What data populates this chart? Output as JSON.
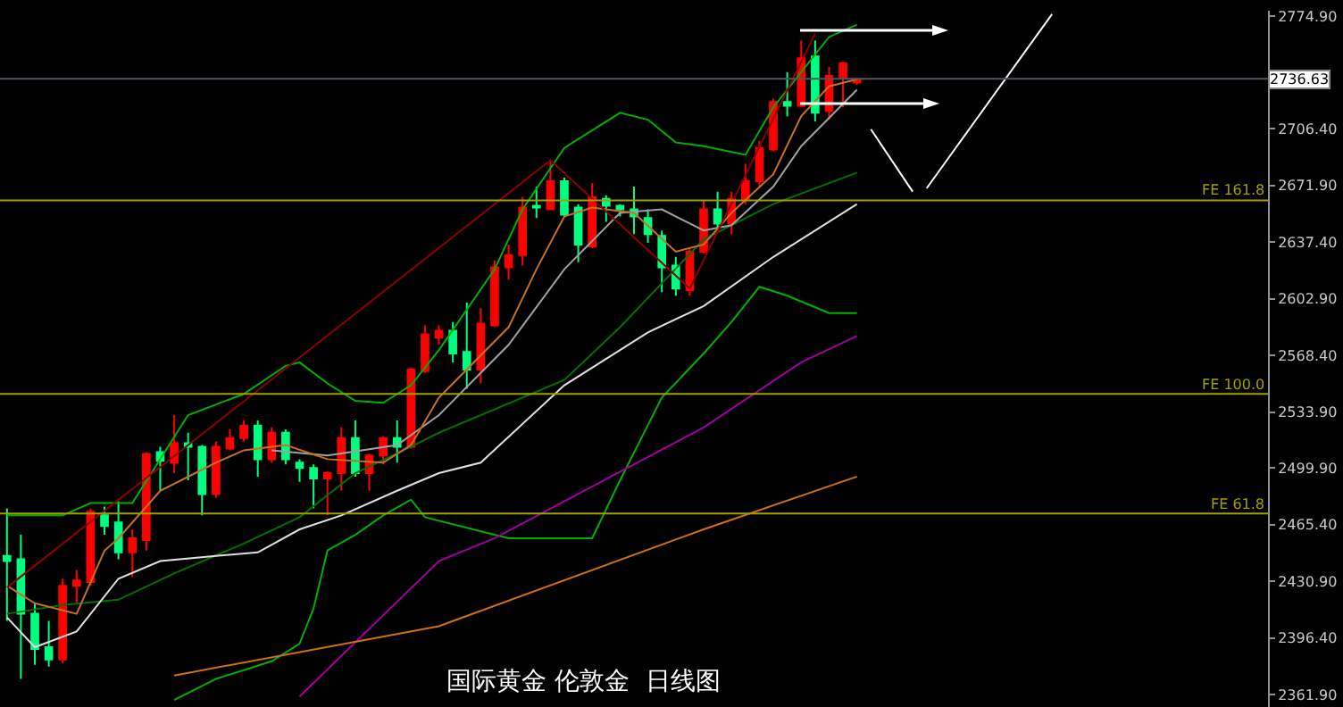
{
  "chart_data": {
    "type": "candlestick",
    "title": "国际黄金 伦敦金  日线图",
    "tick_labels": "y",
    "grid": false,
    "categories": [
      null,
      null,
      null,
      null,
      null,
      null,
      null,
      null,
      null,
      null,
      null,
      null,
      null,
      null,
      null,
      null,
      null,
      null,
      null,
      null,
      null,
      null,
      null,
      null,
      null,
      null,
      null,
      null,
      null,
      null,
      null,
      null,
      null,
      null,
      null,
      null,
      null,
      null,
      null,
      null,
      null,
      null,
      null,
      null,
      null,
      null,
      null,
      null,
      null,
      null,
      null,
      null,
      null,
      null,
      null,
      null,
      null,
      null,
      null,
      null,
      null,
      null,
      null,
      null,
      null,
      null,
      null,
      null,
      null,
      null,
      null,
      null,
      null,
      null,
      null,
      null,
      null,
      null,
      null,
      null,
      null,
      null,
      null,
      null,
      null,
      null,
      null,
      null,
      null,
      null,
      null
    ],
    "ohlc": [
      [
        2446.4,
        2475.3,
        2406.8,
        2443.2
      ],
      [
        2444.3,
        2459.2,
        2371.5,
        2411.1
      ],
      [
        2411.1,
        2417.5,
        2380.1,
        2389.7
      ],
      [
        2390.8,
        2406.8,
        2379.0,
        2383.3
      ],
      [
        2383.3,
        2432.5,
        2381.1,
        2428.2
      ],
      [
        2428.2,
        2437.8,
        2417.5,
        2431.4
      ],
      [
        2430.4,
        2475.3,
        2428.2,
        2473.2
      ],
      [
        2471.0,
        2476.4,
        2459.2,
        2464.6
      ],
      [
        2466.7,
        2479.6,
        2444.3,
        2448.5
      ],
      [
        2448.5,
        2462.5,
        2433.5,
        2457.1
      ],
      [
        2456.0,
        2509.5,
        2449.6,
        2508.4
      ],
      [
        2509.5,
        2512.8,
        2486.0,
        2504.2
      ],
      [
        2503.1,
        2532.0,
        2496.7,
        2514.9
      ],
      [
        2514.9,
        2521.3,
        2492.4,
        2512.8
      ],
      [
        2512.8,
        2513.8,
        2471.0,
        2483.9
      ],
      [
        2483.9,
        2516.0,
        2481.7,
        2512.8
      ],
      [
        2511.7,
        2523.4,
        2510.6,
        2518.1
      ],
      [
        2518.1,
        2528.8,
        2516.0,
        2525.6
      ],
      [
        2525.6,
        2528.8,
        2494.6,
        2505.2
      ],
      [
        2505.2,
        2524.5,
        2503.1,
        2521.3
      ],
      [
        2521.3,
        2523.4,
        2502.0,
        2505.2
      ],
      [
        2503.1,
        2505.2,
        2491.4,
        2499.9
      ],
      [
        2499.9,
        2502.0,
        2475.3,
        2493.5
      ],
      [
        2493.5,
        2497.8,
        2471.0,
        2496.7
      ],
      [
        2496.7,
        2524.5,
        2486.0,
        2518.1
      ],
      [
        2518.1,
        2528.8,
        2494.6,
        2496.7
      ],
      [
        2496.7,
        2508.4,
        2486.0,
        2507.4
      ],
      [
        2507.4,
        2519.2,
        2502.0,
        2518.1
      ],
      [
        2518.1,
        2528.8,
        2503.1,
        2512.8
      ],
      [
        2512.8,
        2560.9,
        2511.7,
        2559.8
      ],
      [
        2558.8,
        2586.6,
        2557.7,
        2581.2
      ],
      [
        2579.1,
        2586.6,
        2574.8,
        2583.4
      ],
      [
        2583.4,
        2588.7,
        2564.1,
        2569.5
      ],
      [
        2570.5,
        2600.5,
        2548.1,
        2559.8
      ],
      [
        2559.8,
        2597.3,
        2551.3,
        2587.7
      ],
      [
        2586.6,
        2626.2,
        2585.5,
        2621.9
      ],
      [
        2621.9,
        2635.8,
        2614.4,
        2629.4
      ],
      [
        2629.4,
        2664.7,
        2623.0,
        2658.3
      ],
      [
        2659.4,
        2671.1,
        2651.9,
        2658.3
      ],
      [
        2657.2,
        2686.1,
        2657.2,
        2674.3
      ],
      [
        2674.3,
        2676.5,
        2652.9,
        2654.0
      ],
      [
        2658.3,
        2660.4,
        2625.1,
        2635.8
      ],
      [
        2634.7,
        2673.3,
        2633.6,
        2664.7
      ],
      [
        2663.6,
        2665.8,
        2649.7,
        2659.4
      ],
      [
        2659.4,
        2660.4,
        2652.9,
        2657.2
      ],
      [
        2657.2,
        2671.1,
        2642.2,
        2652.9
      ],
      [
        2651.9,
        2657.2,
        2636.9,
        2642.2
      ],
      [
        2641.1,
        2644.4,
        2606.9,
        2621.9
      ],
      [
        2623.0,
        2628.3,
        2604.7,
        2609.0
      ],
      [
        2608.0,
        2633.6,
        2604.7,
        2631.5
      ],
      [
        2631.5,
        2662.5,
        2630.5,
        2657.2
      ],
      [
        2657.2,
        2667.9,
        2644.4,
        2648.6
      ],
      [
        2648.6,
        2667.9,
        2642.2,
        2663.6
      ],
      [
        2663.6,
        2685.0,
        2660.4,
        2674.3
      ],
      [
        2674.3,
        2698.9,
        2671.1,
        2694.6
      ],
      [
        2693.6,
        2724.6,
        2692.5,
        2722.5
      ],
      [
        2722.5,
        2740.7,
        2713.9,
        2720.3
      ],
      [
        2720.3,
        2759.9,
        2719.3,
        2749.2
      ],
      [
        2750.3,
        2759.9,
        2710.7,
        2716.0
      ],
      [
        2717.1,
        2743.9,
        2711.8,
        2738.5
      ],
      [
        2737.5,
        2747.1,
        2719.3,
        2746.0
      ],
      [
        2734.4,
        2737.5,
        2733.0,
        2736.6
      ],
      null,
      null,
      null,
      null,
      null,
      null,
      null,
      null,
      null,
      null,
      null,
      null,
      null,
      null,
      null,
      null,
      null,
      null,
      null,
      null,
      null,
      null,
      null,
      null,
      null,
      null,
      null,
      null,
      null
    ],
    "colors": [
      "#00ff80",
      "#00ff80",
      "#00ff80",
      "#00ff80",
      "#ff0000",
      "#ff0000",
      "#ff0000",
      "#00ff80",
      "#00ff80",
      "#ff0000",
      "#ff0000",
      "#00ff80",
      "#ff0000",
      "#00ff80",
      "#00ff80",
      "#ff0000",
      "#ff0000",
      "#ff0000",
      "#00ff80",
      "#ff0000",
      "#00ff80",
      "#00ff80",
      "#00ff80",
      "#ff0000",
      "#ff0000",
      "#00ff80",
      "#ff0000",
      "#ff0000",
      "#00ff80",
      "#ff0000",
      "#ff0000",
      "#ff0000",
      "#00ff80",
      "#00ff80",
      "#ff0000",
      "#ff0000",
      "#ff0000",
      "#ff0000",
      "#00ff80",
      "#ff0000",
      "#00ff80",
      "#00ff80",
      "#ff0000",
      "#00ff80",
      "#00ff80",
      "#00ff80",
      "#00ff80",
      "#00ff80",
      "#00ff80",
      "#ff0000",
      "#ff0000",
      "#00ff80",
      "#ff0000",
      "#ff0000",
      "#ff0000",
      "#ff0000",
      "#00ff80",
      "#ff0000",
      "#00ff80",
      "#ff0000",
      "#ff0000",
      "#ff0000",
      null,
      null,
      null,
      null,
      null,
      null,
      null,
      null,
      null,
      null,
      null,
      null,
      null,
      null,
      null,
      null,
      null,
      null,
      null,
      null,
      null,
      null,
      null,
      null,
      null,
      null,
      null,
      null,
      null
    ],
    "series": [
      {
        "type": "line",
        "color": "#00b000",
        "values": [
          2471.0,
          null,
          null,
          null,
          2471.0,
          null,
          2478.5,
          null,
          null,
          2478.5,
          null,
          null,
          null,
          2532.0,
          null,
          null,
          null,
          2544.9,
          null,
          null,
          2562.0,
          2564.1,
          null,
          2551.3,
          null,
          2540.7,
          null,
          2539.5,
          null,
          2550.2,
          null,
          2571.6,
          null,
          null,
          null,
          2620.8,
          null,
          2657.2,
          null,
          null,
          2694.6,
          null,
          null,
          null,
          2716.0,
          null,
          2711.8,
          null,
          2697.9,
          null,
          2695.7,
          null,
          null,
          2690.4,
          null,
          2719.3,
          null,
          null,
          null,
          2762.1,
          null,
          2769.6,
          null,
          null,
          null,
          null,
          null,
          null,
          null,
          null,
          null,
          null,
          null,
          null,
          null,
          null,
          null,
          null,
          null,
          null,
          null,
          null,
          null,
          null,
          null,
          null,
          null,
          null,
          null,
          null,
          null
        ]
      },
      {
        "type": "line",
        "color": "#007000",
        "values": [
          2411.1,
          null,
          null,
          null,
          2416.5,
          null,
          null,
          null,
          2419.7,
          null,
          null,
          null,
          2435.7,
          null,
          null,
          null,
          null,
          2453.9,
          null,
          null,
          null,
          2469.9,
          null,
          null,
          null,
          2496.7,
          null,
          null,
          null,
          2512.8,
          null,
          2521.3,
          null,
          null,
          null,
          null,
          null,
          null,
          null,
          null,
          2553.4,
          null,
          null,
          null,
          2585.5,
          null,
          null,
          null,
          null,
          null,
          2639.0,
          null,
          null,
          null,
          null,
          2660.4,
          null,
          null,
          null,
          null,
          null,
          2679.6,
          null,
          null,
          null,
          null,
          null,
          null,
          null,
          null,
          null,
          null,
          null,
          null,
          null,
          null,
          null,
          null,
          null,
          null,
          null,
          null,
          null,
          null,
          null,
          null,
          null,
          null,
          null,
          null,
          null
        ]
      },
      {
        "type": "line",
        "color": "#00b000",
        "values": [
          null,
          null,
          null,
          null,
          null,
          null,
          null,
          null,
          null,
          null,
          null,
          null,
          2358.7,
          null,
          null,
          2371.5,
          null,
          null,
          null,
          2382.2,
          null,
          2392.9,
          2414.3,
          2449.6,
          null,
          2459.2,
          null,
          2471.0,
          null,
          2480.6,
          2469.9,
          null,
          null,
          null,
          null,
          null,
          2457.1,
          null,
          null,
          null,
          null,
          null,
          2457.1,
          null,
          2492.4,
          null,
          null,
          2542.7,
          null,
          null,
          2569.5,
          null,
          2588.7,
          null,
          2610.1,
          null,
          2604.7,
          null,
          null,
          2594.1,
          null,
          2594.1,
          null,
          null,
          null,
          null,
          null,
          null,
          null,
          null,
          null,
          null,
          null,
          null,
          null,
          null,
          null,
          null,
          null,
          null,
          null,
          null,
          null,
          null,
          null,
          null,
          null,
          null,
          null,
          null,
          null
        ]
      },
      {
        "type": "line",
        "color": "#e0e0e0",
        "values": [
          2408.9,
          null,
          2390.8,
          null,
          null,
          2400.4,
          null,
          null,
          2432.5,
          null,
          null,
          2443.2,
          null,
          null,
          null,
          2446.4,
          null,
          null,
          2448.5,
          null,
          null,
          2462.5,
          null,
          null,
          2471.0,
          null,
          null,
          null,
          2486.0,
          null,
          null,
          2496.7,
          null,
          null,
          2503.1,
          null,
          null,
          null,
          null,
          null,
          2550.2,
          null,
          null,
          null,
          null,
          null,
          2582.3,
          null,
          null,
          null,
          2598.4,
          null,
          null,
          null,
          null,
          2628.3,
          null,
          null,
          null,
          null,
          null,
          2660.4,
          null,
          null,
          null,
          null,
          null,
          null,
          null,
          null,
          null,
          null,
          null,
          null,
          null,
          null,
          null,
          null,
          null,
          null,
          null,
          null,
          null,
          null,
          null,
          null,
          null,
          null,
          null,
          null,
          null
        ]
      },
      {
        "type": "line",
        "color": "#a0a0a0",
        "values": [
          null,
          null,
          null,
          null,
          null,
          null,
          null,
          null,
          null,
          null,
          null,
          null,
          null,
          null,
          null,
          null,
          null,
          null,
          null,
          2510.6,
          null,
          null,
          null,
          2507.4,
          null,
          null,
          null,
          null,
          2513.8,
          null,
          null,
          2532.0,
          null,
          null,
          null,
          null,
          2574.8,
          null,
          null,
          null,
          2620.8,
          null,
          null,
          null,
          2655.1,
          null,
          null,
          2657.2,
          null,
          null,
          2644.4,
          null,
          2647.6,
          null,
          null,
          2671.1,
          null,
          2695.7,
          null,
          null,
          null,
          2730.0,
          null,
          null,
          null,
          null,
          null,
          null,
          null,
          null,
          null,
          null,
          null,
          null,
          null,
          null,
          null,
          null,
          null,
          null,
          null,
          null,
          null,
          null,
          null,
          null,
          null,
          null,
          null,
          null,
          null
        ]
      },
      {
        "type": "line",
        "color": "#a000a0",
        "values": [
          null,
          null,
          null,
          null,
          null,
          null,
          null,
          null,
          null,
          null,
          null,
          null,
          null,
          null,
          null,
          null,
          null,
          null,
          null,
          null,
          null,
          2360.8,
          null,
          null,
          null,
          null,
          null,
          null,
          null,
          null,
          null,
          2443.2,
          null,
          null,
          null,
          2457.1,
          null,
          null,
          null,
          null,
          null,
          null,
          null,
          null,
          null,
          null,
          null,
          null,
          null,
          null,
          2524.5,
          null,
          null,
          null,
          null,
          null,
          null,
          2564.1,
          null,
          null,
          null,
          2580.2,
          null,
          null,
          null,
          null,
          null,
          null,
          null,
          null,
          null,
          null,
          null,
          null,
          null,
          null,
          null,
          null,
          null,
          null,
          null,
          null,
          null,
          null,
          null,
          null,
          null,
          null,
          null,
          null,
          null
        ]
      },
      {
        "type": "line",
        "color": "#d07010",
        "values": [
          null,
          null,
          null,
          null,
          null,
          null,
          null,
          null,
          null,
          null,
          null,
          null,
          2373.6,
          null,
          null,
          null,
          null,
          null,
          null,
          null,
          null,
          null,
          null,
          null,
          null,
          null,
          null,
          null,
          null,
          null,
          null,
          2403.6,
          null,
          null,
          null,
          null,
          null,
          null,
          null,
          null,
          null,
          null,
          null,
          null,
          null,
          null,
          null,
          null,
          null,
          null,
          2462.5,
          null,
          null,
          null,
          null,
          null,
          null,
          null,
          null,
          null,
          null,
          2494.6,
          null,
          null,
          null,
          null,
          null,
          null,
          null,
          null,
          null,
          null,
          null,
          null,
          null,
          null,
          null,
          null,
          null,
          null,
          null,
          null,
          null,
          null,
          null,
          null,
          null,
          null,
          null,
          null,
          null
        ]
      },
      {
        "type": "line",
        "color": "#c87020",
        "values": [
          2428.2,
          null,
          2417.5,
          null,
          null,
          2411.1,
          null,
          2449.6,
          2457.1,
          null,
          null,
          2486.0,
          null,
          null,
          null,
          2503.1,
          null,
          2510.6,
          null,
          null,
          2513.8,
          null,
          null,
          2505.2,
          null,
          null,
          null,
          2503.1,
          null,
          2513.8,
          null,
          2542.7,
          null,
          null,
          null,
          null,
          2585.5,
          null,
          2620.8,
          null,
          2652.9,
          null,
          2658.3,
          null,
          null,
          2655.1,
          null,
          null,
          2631.5,
          null,
          2635.8,
          null,
          2655.1,
          null,
          null,
          2678.6,
          null,
          2713.9,
          null,
          2732.1,
          null,
          2736.4,
          null,
          null,
          null,
          null,
          null,
          null,
          null,
          null,
          null,
          null,
          null,
          null,
          null,
          null,
          null,
          null,
          null,
          null,
          null,
          null,
          null,
          null,
          null,
          null,
          null,
          null,
          null,
          null,
          null
        ]
      },
      {
        "type": "line",
        "color": "#ffffff",
        "values": [
          null,
          null,
          null,
          null,
          null,
          null,
          null,
          null,
          null,
          null,
          null,
          null,
          null,
          null,
          null,
          null,
          null,
          null,
          null,
          null,
          null,
          null,
          null,
          null,
          null,
          null,
          null,
          null,
          null,
          null,
          null,
          null,
          null,
          null,
          null,
          null,
          null,
          null,
          null,
          null,
          null,
          null,
          null,
          null,
          null,
          null,
          null,
          null,
          null,
          null,
          null,
          null,
          null,
          null,
          null,
          null,
          null,
          null,
          null,
          null,
          null,
          null,
          2706,
          null,
          null,
          2668,
          null,
          null,
          null,
          null,
          null,
          null,
          null,
          null,
          null,
          null,
          null,
          null,
          null,
          null,
          null,
          null,
          null,
          null,
          null,
          null,
          null,
          null,
          null,
          null,
          null
        ]
      },
      {
        "type": "line",
        "color": "#ffffff",
        "values": [
          null,
          null,
          null,
          null,
          null,
          null,
          null,
          null,
          null,
          null,
          null,
          null,
          null,
          null,
          null,
          null,
          null,
          null,
          null,
          null,
          null,
          null,
          null,
          null,
          null,
          null,
          null,
          null,
          null,
          null,
          null,
          null,
          null,
          null,
          null,
          null,
          null,
          null,
          null,
          null,
          null,
          null,
          null,
          null,
          null,
          null,
          null,
          null,
          null,
          null,
          null,
          null,
          null,
          null,
          null,
          null,
          null,
          null,
          null,
          null,
          null,
          null,
          null,
          null,
          null,
          null,
          2670,
          null,
          null,
          null,
          null,
          null,
          null,
          null,
          null,
          2776,
          null,
          null,
          null,
          null,
          null,
          null,
          null,
          null,
          null,
          null,
          null,
          null,
          null,
          null,
          null
        ]
      },
      {
        "type": "line",
        "color": "#8b0000",
        "values": [
          2427.1,
          null,
          null,
          null,
          null,
          null,
          null,
          null,
          null,
          null,
          null,
          null,
          null,
          null,
          null,
          null,
          null,
          null,
          null,
          null,
          null,
          null,
          null,
          null,
          null,
          null,
          null,
          null,
          null,
          null,
          null,
          null,
          null,
          null,
          null,
          null,
          null,
          null,
          null,
          2687.1,
          null,
          null,
          null,
          null,
          null,
          null,
          null,
          null,
          null,
          2609.1,
          null,
          null,
          null,
          null,
          null,
          null,
          null,
          null,
          2764.2,
          null,
          null,
          null,
          null,
          null,
          null,
          null,
          null,
          null,
          null,
          null,
          null,
          null,
          null,
          null,
          null,
          null,
          null,
          null,
          null,
          null,
          null,
          null,
          null,
          null,
          null,
          null,
          null,
          null,
          null,
          null,
          null
        ]
      }
    ],
    "ylim": [
      2354.4,
      2778.1
    ],
    "yticks": [
      {
        "value": 2774.9,
        "label": "2774.90"
      },
      {
        "value": 2706.4,
        "label": "2706.40"
      },
      {
        "value": 2671.9,
        "label": "2671.90"
      },
      {
        "value": 2637.4,
        "label": "2637.40"
      },
      {
        "value": 2602.9,
        "label": "2602.90"
      },
      {
        "value": 2568.4,
        "label": "2568.40"
      },
      {
        "value": 2533.9,
        "label": "2533.90"
      },
      {
        "value": 2499.9,
        "label": "2499.90"
      },
      {
        "value": 2465.4,
        "label": "2465.40"
      },
      {
        "value": 2430.9,
        "label": "2430.90"
      },
      {
        "value": 2396.4,
        "label": "2396.40"
      },
      {
        "value": 2361.9,
        "label": "2361.90"
      }
    ],
    "ref_lines": [
      {
        "axis": "y",
        "value": 2736.63,
        "label": "2736.63",
        "color": "#505560"
      },
      {
        "axis": "y",
        "value": 2662.6,
        "label": "FE 161.8",
        "color": "#a0a000"
      },
      {
        "axis": "y",
        "value": 2544.9,
        "label": "FE 100.0",
        "color": "#a0a000"
      },
      {
        "axis": "y",
        "value": 2472.1,
        "label": "FE 61.8",
        "color": "#a0a000"
      }
    ]
  }
}
